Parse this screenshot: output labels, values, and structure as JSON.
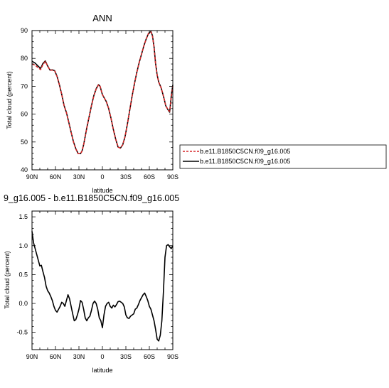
{
  "chart_data": [
    {
      "type": "line",
      "title": "ANN",
      "xlabel": "latitude",
      "ylabel": "Total cloud (percent)",
      "xlim": [
        90,
        -90
      ],
      "ylim": [
        40,
        90
      ],
      "xticks": [
        90,
        60,
        30,
        0,
        -30,
        -60,
        -90
      ],
      "xticklabels": [
        "90N",
        "60N",
        "30N",
        "0",
        "30S",
        "60S",
        "90S"
      ],
      "yticks": [
        40,
        50,
        60,
        70,
        80,
        90
      ],
      "yticklabels": [
        "40",
        "50",
        "60",
        "70",
        "80",
        "90"
      ],
      "grid": false,
      "legend_position": "right",
      "series": [
        {
          "name": "b.e11.B1850C5CN.f09_g16.005",
          "color": "#d62728",
          "dash": "dashed",
          "x": [
            90,
            86,
            82,
            79,
            76,
            73,
            70,
            67,
            64,
            61,
            58,
            55,
            52,
            49,
            46,
            43,
            40,
            37,
            34,
            31,
            28,
            26,
            24,
            22,
            20,
            17,
            14,
            11,
            8,
            5,
            3,
            1,
            0,
            -2,
            -5,
            -8,
            -11,
            -14,
            -17,
            -20,
            -23,
            -26,
            -29,
            -32,
            -35,
            -38,
            -41,
            -44,
            -47,
            -50,
            -53,
            -56,
            -59,
            -62,
            -64,
            -66,
            -68,
            -70,
            -72,
            -75,
            -78,
            -81,
            -84,
            -86,
            -88,
            -90
          ],
          "y": [
            78.0,
            77.6,
            76.6,
            76.0,
            77.8,
            78.9,
            77.2,
            75.8,
            75.8,
            75.5,
            73.5,
            70.5,
            67.0,
            63.0,
            60.5,
            57.0,
            53.5,
            50.0,
            47.5,
            45.8,
            45.8,
            46.8,
            49.0,
            52.0,
            55.0,
            59.0,
            63.0,
            66.5,
            69.0,
            70.5,
            70.0,
            68.0,
            67.0,
            66.0,
            64.5,
            62.0,
            58.5,
            54.5,
            51.0,
            48.2,
            47.8,
            49.0,
            52.0,
            56.5,
            61.5,
            66.5,
            71.0,
            75.0,
            78.5,
            81.5,
            84.5,
            87.0,
            89.0,
            89.5,
            88.0,
            84.0,
            78.0,
            74.0,
            71.5,
            69.5,
            66.5,
            63.0,
            61.5,
            61.0,
            66.0,
            70.0
          ]
        },
        {
          "name": "b.e11.B1850C5CN.f09_g16.005",
          "color": "#000000",
          "dash": "solid",
          "x": [
            90,
            86,
            82,
            79,
            76,
            73,
            70,
            67,
            64,
            61,
            58,
            55,
            52,
            49,
            46,
            43,
            40,
            37,
            34,
            31,
            28,
            26,
            24,
            22,
            20,
            17,
            14,
            11,
            8,
            5,
            3,
            1,
            0,
            -2,
            -5,
            -8,
            -11,
            -14,
            -17,
            -20,
            -23,
            -26,
            -29,
            -32,
            -35,
            -38,
            -41,
            -44,
            -47,
            -50,
            -53,
            -56,
            -59,
            -62,
            -64,
            -66,
            -68,
            -70,
            -72,
            -75,
            -78,
            -81,
            -84,
            -86,
            -88,
            -90
          ],
          "y": [
            79.0,
            78.3,
            77.2,
            76.4,
            78.2,
            79.1,
            77.3,
            75.8,
            75.9,
            75.6,
            73.6,
            70.6,
            67.1,
            63.1,
            60.6,
            57.1,
            53.5,
            50.1,
            47.6,
            45.8,
            45.8,
            46.8,
            49.0,
            52.0,
            55.0,
            59.0,
            63.0,
            66.6,
            69.1,
            70.6,
            70.0,
            68.0,
            67.0,
            66.0,
            64.5,
            62.0,
            58.5,
            54.5,
            51.0,
            48.2,
            47.8,
            49.0,
            52.0,
            56.5,
            61.5,
            66.5,
            71.0,
            75.0,
            78.5,
            81.5,
            84.5,
            87.0,
            89.0,
            89.7,
            88.2,
            84.2,
            78.2,
            74.0,
            71.5,
            69.5,
            66.5,
            63.0,
            61.5,
            60.7,
            66.5,
            70.5
          ]
        }
      ]
    },
    {
      "type": "line",
      "title": "9_g16.005 - b.e11.B1850C5CN.f09_g16.005",
      "xlabel": "latitude",
      "ylabel": "Total cloud (percent)",
      "xlim": [
        90,
        -90
      ],
      "ylim": [
        -0.8,
        1.6
      ],
      "xticks": [
        90,
        60,
        30,
        0,
        -30,
        -60,
        -90
      ],
      "xticklabels": [
        "90N",
        "60N",
        "30N",
        "0",
        "30S",
        "60S",
        "90S"
      ],
      "yticks": [
        -0.5,
        0,
        0.5,
        1,
        1.5
      ],
      "yticklabels": [
        "-0.5",
        "0.0",
        "0.5",
        "1.0",
        "1.5"
      ],
      "grid": false,
      "series": [
        {
          "color": "#000000",
          "dash": "solid",
          "x": [
            90,
            88,
            86,
            84,
            82,
            80,
            78,
            76,
            74,
            72,
            70,
            68,
            66,
            64,
            62,
            60,
            58,
            56,
            54,
            52,
            50,
            48,
            46,
            44,
            42,
            40,
            38,
            36,
            34,
            32,
            30,
            28,
            26,
            24,
            22,
            20,
            18,
            16,
            14,
            12,
            10,
            8,
            6,
            4,
            2,
            0,
            -2,
            -4,
            -6,
            -8,
            -10,
            -12,
            -14,
            -16,
            -18,
            -20,
            -22,
            -24,
            -26,
            -28,
            -30,
            -32,
            -34,
            -36,
            -38,
            -40,
            -42,
            -44,
            -46,
            -48,
            -50,
            -52,
            -54,
            -56,
            -58,
            -60,
            -62,
            -64,
            -66,
            -68,
            -70,
            -72,
            -74,
            -76,
            -78,
            -80,
            -82,
            -84,
            -86,
            -88,
            -90
          ],
          "y": [
            1.25,
            1.05,
            0.95,
            0.85,
            0.75,
            0.65,
            0.66,
            0.55,
            0.45,
            0.3,
            0.22,
            0.18,
            0.12,
            0.05,
            -0.05,
            -0.12,
            -0.15,
            -0.1,
            -0.05,
            0.02,
            0.0,
            -0.05,
            0.05,
            0.15,
            0.08,
            -0.05,
            -0.18,
            -0.3,
            -0.28,
            -0.2,
            -0.1,
            0.05,
            0.02,
            -0.1,
            -0.25,
            -0.3,
            -0.25,
            -0.22,
            -0.12,
            0.0,
            0.04,
            0.0,
            -0.1,
            -0.25,
            -0.3,
            -0.42,
            -0.2,
            -0.05,
            0.0,
            0.02,
            -0.05,
            -0.08,
            -0.03,
            -0.06,
            -0.02,
            0.03,
            0.04,
            0.02,
            0.0,
            -0.06,
            -0.2,
            -0.25,
            -0.26,
            -0.22,
            -0.2,
            -0.18,
            -0.1,
            -0.08,
            -0.02,
            0.05,
            0.1,
            0.15,
            0.18,
            0.12,
            0.05,
            -0.05,
            -0.1,
            -0.2,
            -0.3,
            -0.45,
            -0.62,
            -0.65,
            -0.55,
            -0.3,
            0.2,
            0.8,
            1.0,
            1.02,
            0.98,
            0.95,
            1.0
          ]
        }
      ]
    }
  ]
}
